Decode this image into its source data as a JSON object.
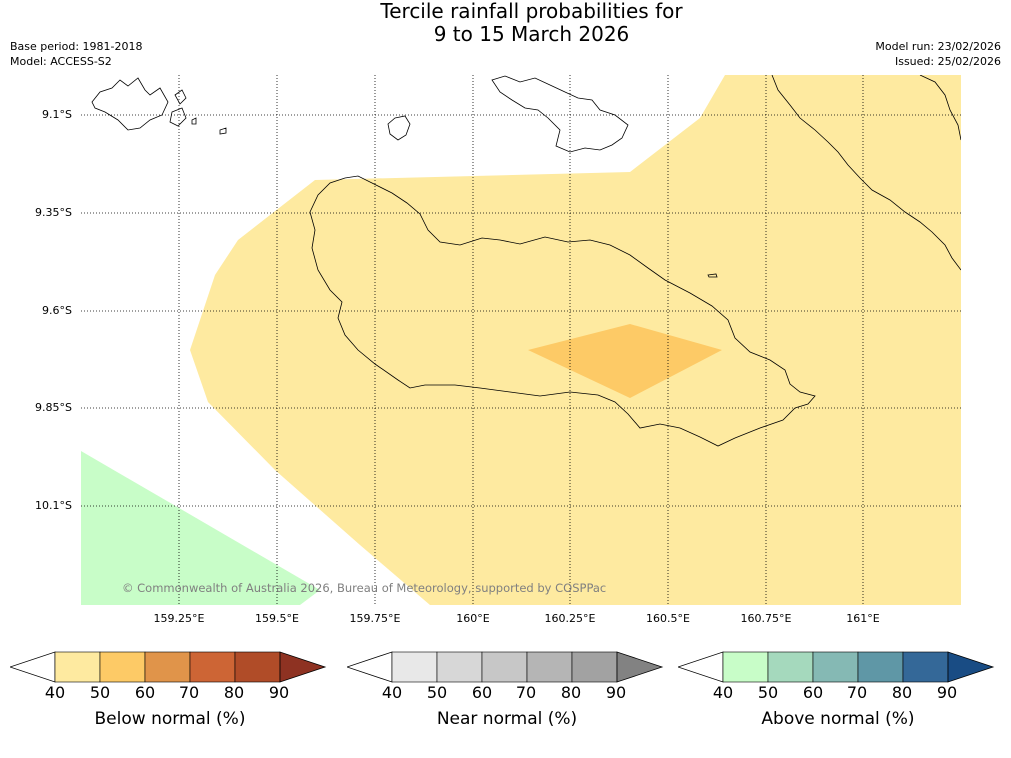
{
  "title": {
    "line1": "Tercile rainfall probabilities for",
    "line2": "9 to 15 March 2026"
  },
  "meta": {
    "base_period": "Base period: 1981-2018",
    "model": "Model: ACCESS-S2",
    "model_run": "Model run: 23/02/2026",
    "issued": "Issued: 25/02/2026"
  },
  "map": {
    "lat_labels": [
      "9.1°S",
      "9.35°S",
      "9.6°S",
      "9.85°S",
      "10.1°S"
    ],
    "lon_labels": [
      "159.25°E",
      "159.5°E",
      "159.75°E",
      "160°E",
      "160.25°E",
      "160.5°E",
      "160.75°E",
      "161°E"
    ],
    "copyright": "© Commonwealth of Australia 2026, Bureau of Meteorology, supported by COSPPac",
    "region_colors": {
      "below_50": "#feeaa0",
      "below_60": "#fdca66",
      "above_50": "#c8fdc8"
    }
  },
  "colorbars": [
    {
      "label": "Below normal (%)",
      "ticks": [
        "40",
        "50",
        "60",
        "70",
        "80",
        "90"
      ],
      "colors": [
        "#ffffff",
        "#feeaa0",
        "#fdca66",
        "#e0944a",
        "#cd6535",
        "#b04c28",
        "#8e3222"
      ]
    },
    {
      "label": "Near normal (%)",
      "ticks": [
        "40",
        "50",
        "60",
        "70",
        "80",
        "90"
      ],
      "colors": [
        "#ffffff",
        "#e8e8e8",
        "#d7d7d7",
        "#c7c7c7",
        "#b5b5b5",
        "#a2a2a2",
        "#828282"
      ]
    },
    {
      "label": "Above normal (%)",
      "ticks": [
        "40",
        "50",
        "60",
        "70",
        "80",
        "90"
      ],
      "colors": [
        "#ffffff",
        "#c8fdc8",
        "#a5d9bd",
        "#85b9b4",
        "#5f97a6",
        "#346898",
        "#194c84"
      ]
    }
  ]
}
